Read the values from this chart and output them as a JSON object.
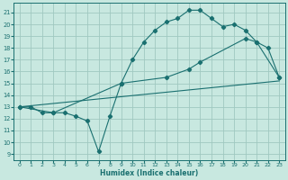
{
  "title": "",
  "xlabel": "Humidex (Indice chaleur)",
  "ylabel": "",
  "bg_color": "#c8e8e0",
  "grid_color": "#a0c8c0",
  "line_color": "#1a7070",
  "xlim": [
    -0.5,
    23.5
  ],
  "ylim": [
    8.5,
    21.8
  ],
  "xticks": [
    0,
    1,
    2,
    3,
    4,
    5,
    6,
    7,
    8,
    9,
    10,
    11,
    12,
    13,
    14,
    15,
    16,
    17,
    18,
    19,
    20,
    21,
    22,
    23
  ],
  "yticks": [
    9,
    10,
    11,
    12,
    13,
    14,
    15,
    16,
    17,
    18,
    19,
    20,
    21
  ],
  "line1_x": [
    0,
    1,
    2,
    3,
    4,
    5,
    6,
    7,
    8,
    9,
    10,
    11,
    12,
    13,
    14,
    15,
    16,
    17,
    18,
    19,
    20,
    21,
    22,
    23
  ],
  "line1_y": [
    13,
    13,
    12.5,
    12.5,
    12.5,
    12.2,
    11.8,
    9.2,
    12.2,
    15.0,
    17.0,
    18.5,
    19.5,
    20.2,
    20.5,
    21.2,
    21.2,
    20.5,
    19.8,
    20.0,
    19.5,
    18.5,
    18.0,
    15.5
  ],
  "line2_x": [
    0,
    23
  ],
  "line2_y": [
    13.0,
    15.2
  ],
  "line3_x": [
    0,
    3,
    9,
    13,
    15,
    16,
    20,
    21,
    23
  ],
  "line3_y": [
    13,
    12.5,
    15.0,
    15.5,
    16.2,
    16.8,
    18.8,
    18.5,
    15.5
  ]
}
